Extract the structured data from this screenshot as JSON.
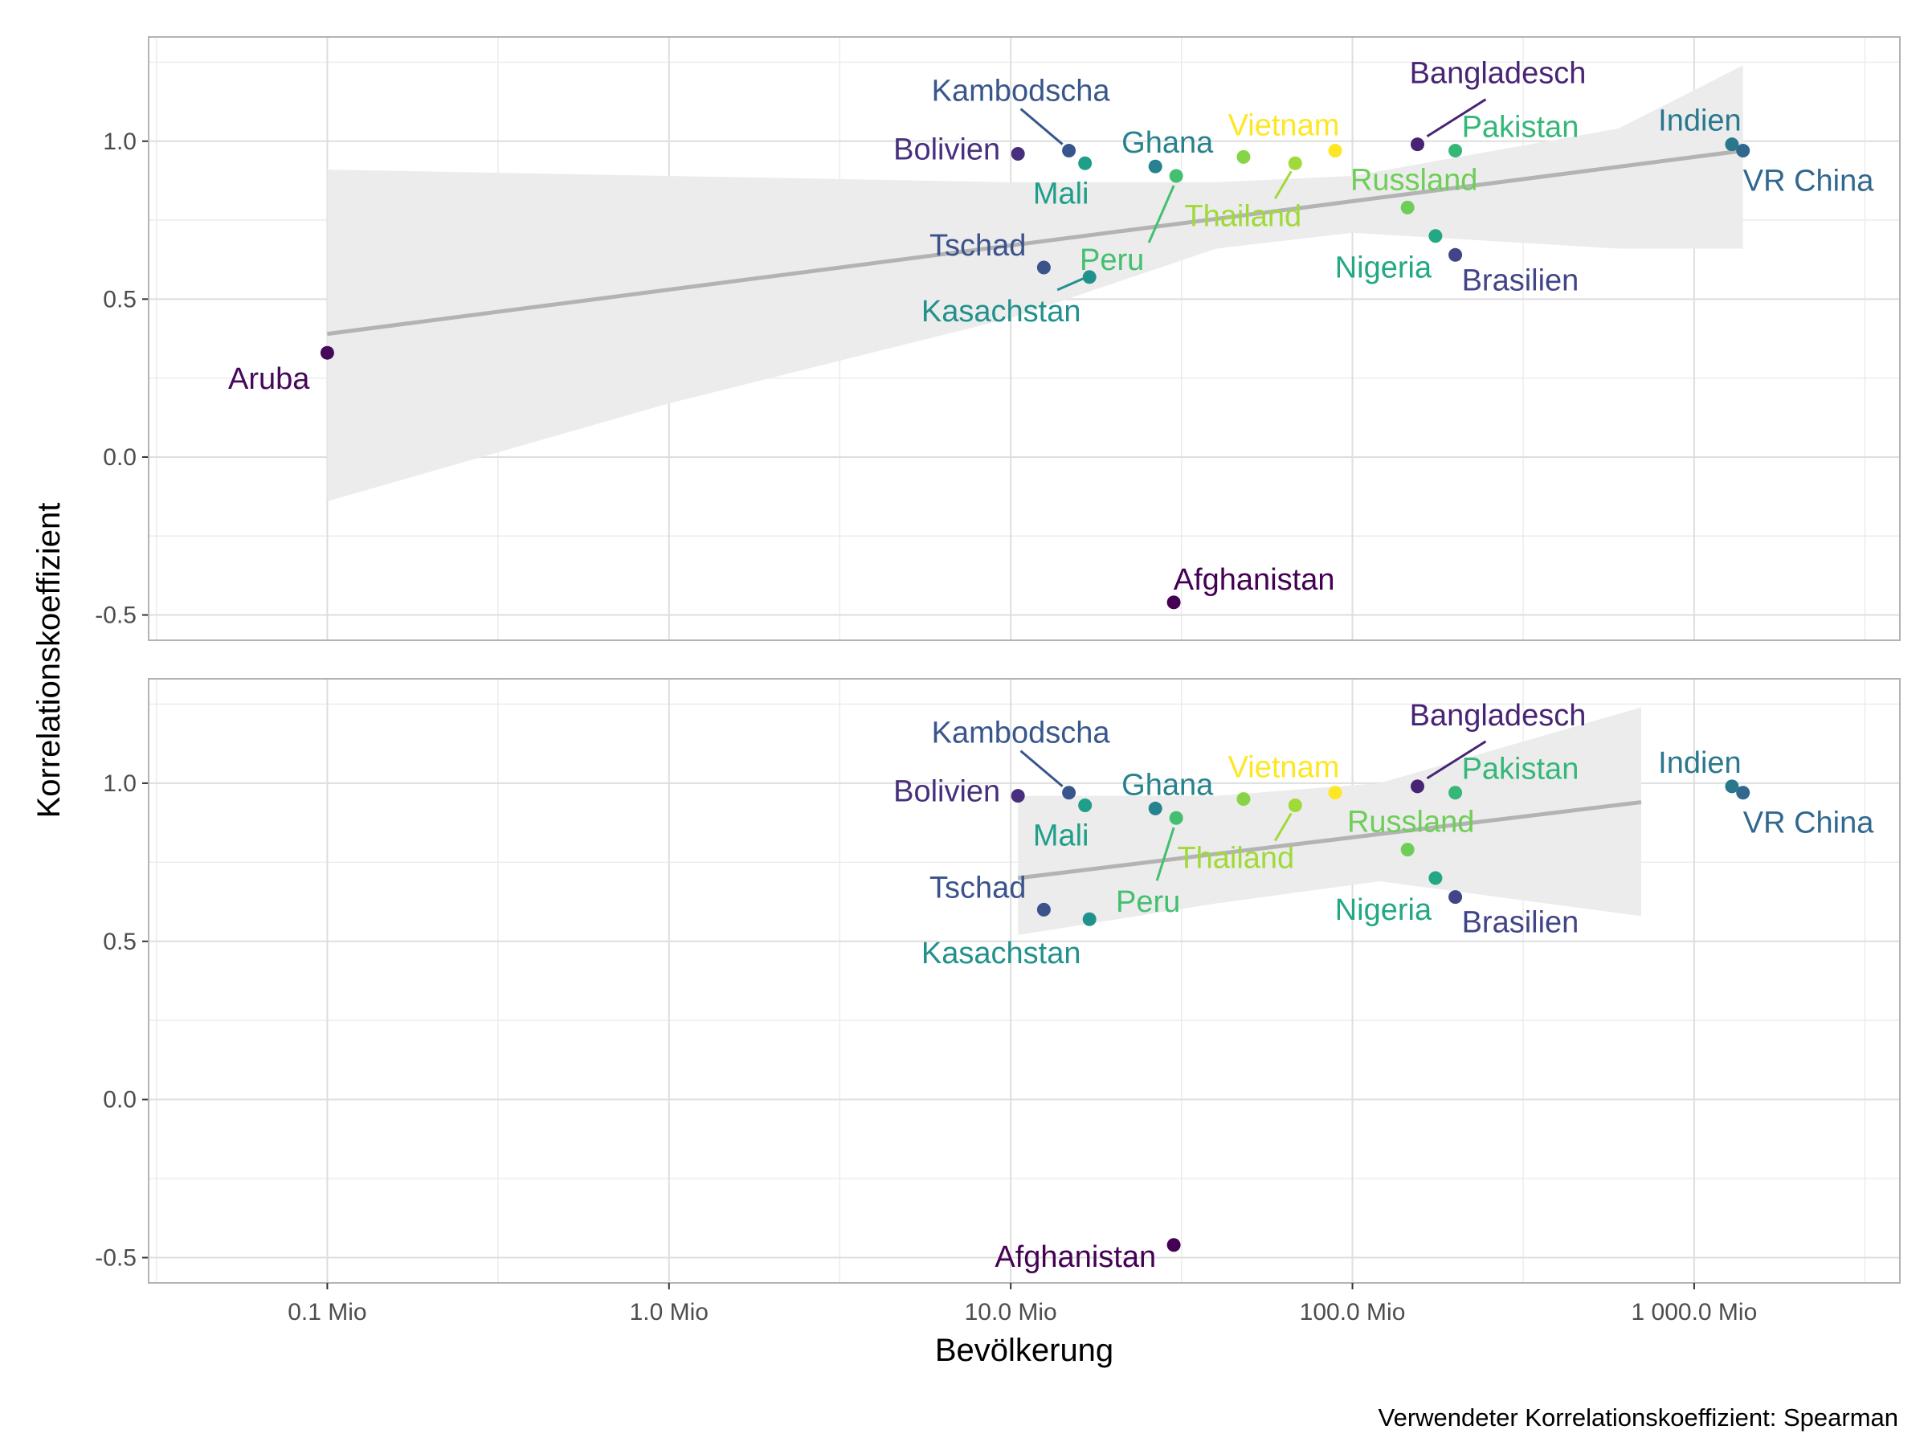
{
  "chart_data": {
    "type": "scatter",
    "subtype": "faceted scatter with linear trend line and confidence band",
    "facets": 2,
    "xlabel": "Bevölkerung",
    "ylabel": "Korrelationskoeffizient",
    "caption": "Verwendeter Korrelationskoeffizient: Spearman",
    "x_scale": "log10",
    "x_ticks": [
      0.1,
      1,
      10,
      100,
      1000
    ],
    "x_tick_labels": [
      "0.1 Mio",
      "1.0 Mio",
      "10.0 Mio",
      "100.0 Mio",
      "1 000.0 Mio"
    ],
    "xlim": [
      0.03,
      4000
    ],
    "y_ticks": [
      -0.5,
      0.0,
      0.5,
      1.0
    ],
    "y_tick_labels": [
      "-0.5",
      "0.0",
      "0.5",
      "1.0"
    ],
    "ylim": [
      -0.58,
      1.33
    ],
    "grid": true,
    "legend": "none",
    "trend_color": "#b3b3b3",
    "band_color": "#ebebeb",
    "panel_border_color": "#b3b3b3",
    "countries": [
      {
        "name": "Afghanistan",
        "population": 30.0,
        "value": -0.46,
        "color": "#440154"
      },
      {
        "name": "Aruba",
        "population": 0.1,
        "value": 0.33,
        "color": "#45085b"
      },
      {
        "name": "Bangladesch",
        "population": 155.0,
        "value": 0.99,
        "color": "#482475"
      },
      {
        "name": "Bolivien",
        "population": 10.5,
        "value": 0.96,
        "color": "#472f7d"
      },
      {
        "name": "Brasilien",
        "population": 200.0,
        "value": 0.64,
        "color": "#414487"
      },
      {
        "name": "Kambodscha",
        "population": 14.8,
        "value": 0.97,
        "color": "#39568c"
      },
      {
        "name": "Tschad",
        "population": 12.5,
        "value": 0.6,
        "color": "#3b528b"
      },
      {
        "name": "VR China",
        "population": 1390.0,
        "value": 0.97,
        "color": "#31688e"
      },
      {
        "name": "Indien",
        "population": 1290.0,
        "value": 0.99,
        "color": "#2a788e"
      },
      {
        "name": "Ghana",
        "population": 26.5,
        "value": 0.92,
        "color": "#26828e"
      },
      {
        "name": "Kasachstan",
        "population": 17.0,
        "value": 0.57,
        "color": "#21918c"
      },
      {
        "name": "Mali",
        "population": 16.5,
        "value": 0.93,
        "color": "#1f9e89"
      },
      {
        "name": "Nigeria",
        "population": 175.0,
        "value": 0.7,
        "color": "#22a884"
      },
      {
        "name": "Pakistan",
        "population": 200.0,
        "value": 0.97,
        "color": "#35b779"
      },
      {
        "name": "Peru",
        "population": 30.5,
        "value": 0.89,
        "color": "#44bf70"
      },
      {
        "name": "Russland",
        "population": 145.0,
        "value": 0.79,
        "color": "#6ece58"
      },
      {
        "name": "Thailand",
        "population": 68.0,
        "value": 0.93,
        "color": "#a0da39"
      },
      {
        "name": "Vietnam",
        "population": 89.0,
        "value": 0.97,
        "color": "#fde725"
      },
      {
        "name": "",
        "population": 48.0,
        "value": 0.95,
        "color": "#86d549"
      }
    ],
    "panels": [
      {
        "facet": 1,
        "trend": {
          "x": [
            0.1,
            1390.0
          ],
          "y": [
            0.39,
            0.97
          ]
        },
        "band_upper": [
          0.91,
          0.89,
          0.87,
          0.87,
          0.89,
          1.04,
          1.24
        ],
        "band_lower": [
          -0.14,
          0.17,
          0.44,
          0.66,
          0.71,
          0.66,
          0.66
        ],
        "band_x": [
          0.1,
          1.0,
          10.0,
          40.0,
          100.0,
          600.0,
          1390.0
        ]
      },
      {
        "facet": 2,
        "trend": {
          "x": [
            10.5,
            700.0
          ],
          "y": [
            0.7,
            0.94
          ]
        },
        "band_upper": [
          0.96,
          0.96,
          1.0,
          1.24
        ],
        "band_lower": [
          0.52,
          0.62,
          0.69,
          0.58
        ],
        "band_x": [
          10.5,
          40.0,
          120.0,
          700.0
        ]
      }
    ]
  }
}
